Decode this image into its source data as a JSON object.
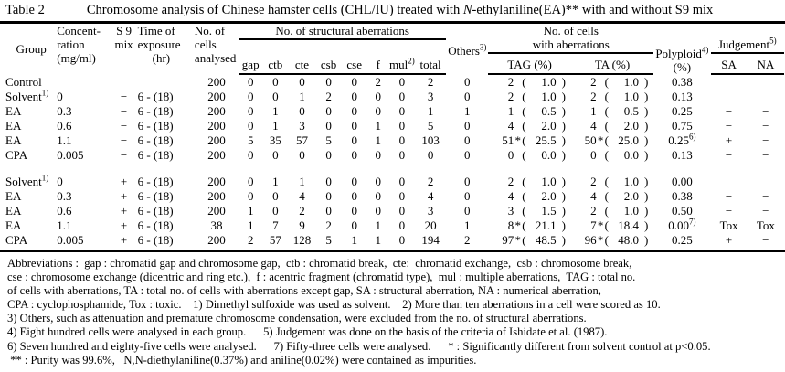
{
  "title": {
    "label": "Table 2",
    "pre": "Chromosome analysis of Chinese hamster cells (CHL/IU) treated with ",
    "italic": "N",
    "post": "-ethylaniline(EA)** with and without S9 mix"
  },
  "header": {
    "group": "Group",
    "concentration": [
      "Concent-",
      "ration",
      "(mg/ml)"
    ],
    "s9": [
      "S 9",
      "mix"
    ],
    "time": [
      "Time of",
      "exposure",
      "(hr)"
    ],
    "cells": [
      "No. of",
      "cells",
      "analysed"
    ],
    "structural": "No. of structural aberrations",
    "structural_cols": [
      "gap",
      "ctb",
      "cte",
      "csb",
      "cse",
      "f",
      "mul",
      "total"
    ],
    "mul_sup": "2)",
    "others": "Others",
    "others_sup": "3)",
    "aberr_line1": "No. of cells",
    "aberr_line2": "with aberrations",
    "aberr_cols": [
      "TAG (%)",
      "TA (%)"
    ],
    "polyploid": "Polyploid",
    "polyploid_sup": "4)",
    "polyploid_unit": "(%)",
    "judgement": "Judgement",
    "judgement_sup": "5)",
    "judgement_cols": [
      "SA",
      "NA"
    ]
  },
  "sections": [
    {
      "rows": [
        {
          "group": "Control",
          "sup": "",
          "conc": "",
          "s9": "",
          "time": "",
          "cells": "200",
          "gap": "0",
          "ctb": "0",
          "cte": "0",
          "csb": "0",
          "cse": "0",
          "f": "2",
          "mul": "0",
          "total": "2",
          "others": "0",
          "tag": {
            "n": "2",
            "star": "",
            "pct": "1.0"
          },
          "ta": {
            "n": "2",
            "star": "",
            "pct": "1.0"
          },
          "poly": "0.38",
          "poly_sup": "",
          "sa": "",
          "na": ""
        },
        {
          "group": "Solvent",
          "sup": "1)",
          "conc": "0",
          "s9": "−",
          "time": "6 - (18)",
          "cells": "200",
          "gap": "0",
          "ctb": "0",
          "cte": "1",
          "csb": "2",
          "cse": "0",
          "f": "0",
          "mul": "0",
          "total": "3",
          "others": "0",
          "tag": {
            "n": "2",
            "star": "",
            "pct": "1.0"
          },
          "ta": {
            "n": "2",
            "star": "",
            "pct": "1.0"
          },
          "poly": "0.13",
          "poly_sup": "",
          "sa": "",
          "na": ""
        },
        {
          "group": "EA",
          "sup": "",
          "conc": "0.3",
          "s9": "−",
          "time": "6 - (18)",
          "cells": "200",
          "gap": "0",
          "ctb": "1",
          "cte": "0",
          "csb": "0",
          "cse": "0",
          "f": "0",
          "mul": "0",
          "total": "1",
          "others": "1",
          "tag": {
            "n": "1",
            "star": "",
            "pct": "0.5"
          },
          "ta": {
            "n": "1",
            "star": "",
            "pct": "0.5"
          },
          "poly": "0.25",
          "poly_sup": "",
          "sa": "−",
          "na": "−"
        },
        {
          "group": "EA",
          "sup": "",
          "conc": "0.6",
          "s9": "−",
          "time": "6 - (18)",
          "cells": "200",
          "gap": "0",
          "ctb": "1",
          "cte": "3",
          "csb": "0",
          "cse": "0",
          "f": "1",
          "mul": "0",
          "total": "5",
          "others": "0",
          "tag": {
            "n": "4",
            "star": "",
            "pct": "2.0"
          },
          "ta": {
            "n": "4",
            "star": "",
            "pct": "2.0"
          },
          "poly": "0.75",
          "poly_sup": "",
          "sa": "−",
          "na": "−"
        },
        {
          "group": "EA",
          "sup": "",
          "conc": "1.1",
          "s9": "−",
          "time": "6 - (18)",
          "cells": "200",
          "gap": "5",
          "ctb": "35",
          "cte": "57",
          "csb": "5",
          "cse": "0",
          "f": "1",
          "mul": "0",
          "total": "103",
          "others": "0",
          "tag": {
            "n": "51",
            "star": "*",
            "pct": "25.5"
          },
          "ta": {
            "n": "50",
            "star": "*",
            "pct": "25.0"
          },
          "poly": "0.25",
          "poly_sup": "6)",
          "sa": "+",
          "na": "−"
        },
        {
          "group": "CPA",
          "sup": "",
          "conc": "0.005",
          "s9": "−",
          "time": "6 - (18)",
          "cells": "200",
          "gap": "0",
          "ctb": "0",
          "cte": "0",
          "csb": "0",
          "cse": "0",
          "f": "0",
          "mul": "0",
          "total": "0",
          "others": "0",
          "tag": {
            "n": "0",
            "star": "",
            "pct": "0.0"
          },
          "ta": {
            "n": "0",
            "star": "",
            "pct": "0.0"
          },
          "poly": "0.13",
          "poly_sup": "",
          "sa": "−",
          "na": "−"
        }
      ]
    },
    {
      "rows": [
        {
          "group": "Solvent",
          "sup": "1)",
          "conc": "0",
          "s9": "+",
          "time": "6 - (18)",
          "cells": "200",
          "gap": "0",
          "ctb": "1",
          "cte": "1",
          "csb": "0",
          "cse": "0",
          "f": "0",
          "mul": "0",
          "total": "2",
          "others": "0",
          "tag": {
            "n": "2",
            "star": "",
            "pct": "1.0"
          },
          "ta": {
            "n": "2",
            "star": "",
            "pct": "1.0"
          },
          "poly": "0.00",
          "poly_sup": "",
          "sa": "",
          "na": ""
        },
        {
          "group": "EA",
          "sup": "",
          "conc": "0.3",
          "s9": "+",
          "time": "6 - (18)",
          "cells": "200",
          "gap": "0",
          "ctb": "0",
          "cte": "4",
          "csb": "0",
          "cse": "0",
          "f": "0",
          "mul": "0",
          "total": "4",
          "others": "0",
          "tag": {
            "n": "4",
            "star": "",
            "pct": "2.0"
          },
          "ta": {
            "n": "4",
            "star": "",
            "pct": "2.0"
          },
          "poly": "0.38",
          "poly_sup": "",
          "sa": "−",
          "na": "−"
        },
        {
          "group": "EA",
          "sup": "",
          "conc": "0.6",
          "s9": "+",
          "time": "6 - (18)",
          "cells": "200",
          "gap": "1",
          "ctb": "0",
          "cte": "2",
          "csb": "0",
          "cse": "0",
          "f": "0",
          "mul": "0",
          "total": "3",
          "others": "0",
          "tag": {
            "n": "3",
            "star": "",
            "pct": "1.5"
          },
          "ta": {
            "n": "2",
            "star": "",
            "pct": "1.0"
          },
          "poly": "0.50",
          "poly_sup": "",
          "sa": "−",
          "na": "−"
        },
        {
          "group": "EA",
          "sup": "",
          "conc": "1.1",
          "s9": "+",
          "time": "6 - (18)",
          "cells": "38",
          "gap": "1",
          "ctb": "7",
          "cte": "9",
          "csb": "2",
          "cse": "0",
          "f": "1",
          "mul": "0",
          "total": "20",
          "others": "1",
          "tag": {
            "n": "8",
            "star": "*",
            "pct": "21.1"
          },
          "ta": {
            "n": "7",
            "star": "*",
            "pct": "18.4"
          },
          "poly": "0.00",
          "poly_sup": "7)",
          "sa": "Tox",
          "na": "Tox"
        },
        {
          "group": "CPA",
          "sup": "",
          "conc": "0.005",
          "s9": "+",
          "time": "6 - (18)",
          "cells": "200",
          "gap": "2",
          "ctb": "57",
          "cte": "128",
          "csb": "5",
          "cse": "1",
          "f": "1",
          "mul": "0",
          "total": "194",
          "others": "2",
          "tag": {
            "n": "97",
            "star": "*",
            "pct": "48.5"
          },
          "ta": {
            "n": "96",
            "star": "*",
            "pct": "48.0"
          },
          "poly": "0.25",
          "poly_sup": "",
          "sa": "+",
          "na": "−"
        }
      ]
    }
  ],
  "footnotes": [
    "Abbreviations :  gap : chromatid gap and chromosome gap,  ctb : chromatid break,  cte:  chromatid exchange,  csb : chromosome break,",
    "cse : chromosome exchange (dicentric and ring etc.),  f : acentric fragment (chromatid type),  mul : multiple aberrations,  TAG : total no.",
    "of cells with aberrations, TA : total no. of cells with aberrations except gap, SA : structural aberration, NA : numerical aberration,",
    "CPA : cyclophosphamide, Tox : toxic.    1) Dimethyl sulfoxide was used as solvent.    2) More than ten aberrations in a cell were scored as 10.",
    "3) Others, such as attenuation and premature chromosome condensation, were excluded from the no. of structural aberrations.",
    "4) Eight hundred cells were analysed in each group.      5) Judgement was done on the basis of the criteria of Ishidate et al. (1987).",
    "6) Seven hundred and eighty-five cells were analysed.      7) Fifty-three cells were analysed.      * : Significantly different from solvent control at p<0.05.",
    " ** : Purity was 99.6%,   N,N-diethylaniline(0.37%) and aniline(0.02%) were contained as impurities."
  ],
  "colors": {
    "text": "#000000",
    "background": "#ffffff"
  }
}
